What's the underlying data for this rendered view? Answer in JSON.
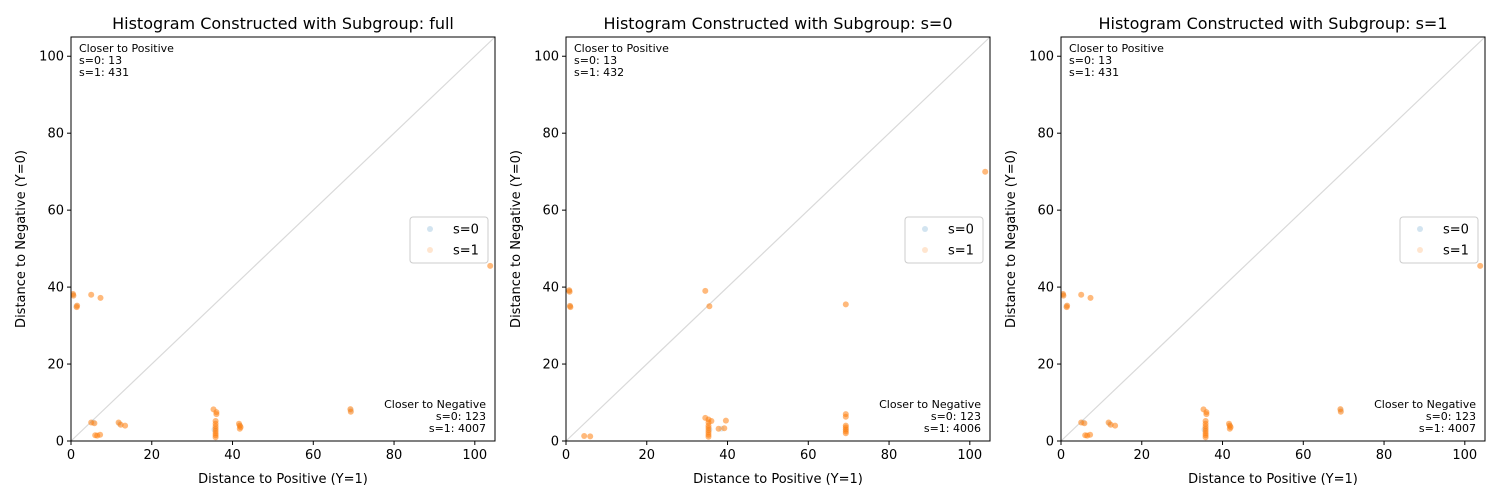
{
  "colors": {
    "s0": "#1f77b4",
    "s1": "#ff7f0e",
    "diagonal": "#d9d9d9"
  },
  "chart_data": [
    {
      "type": "scatter",
      "title": "Histogram Constructed with Subgroup: full",
      "xlabel": "Distance to Positive (Y=1)",
      "ylabel": "Distance to Negative (Y=0)",
      "xlim": [
        0,
        105
      ],
      "ylim": [
        0,
        105
      ],
      "xticks": [
        "0",
        "20",
        "40",
        "60",
        "80",
        "100"
      ],
      "yticks": [
        "0",
        "20",
        "40",
        "60",
        "80",
        "100"
      ],
      "legend": {
        "placement": "center-right",
        "entries": [
          "s=0",
          "s=1"
        ]
      },
      "annotations": {
        "positive": [
          "Closer to Positive",
          "s=0: 13",
          "s=1: 431"
        ],
        "negative": [
          "Closer to Negative",
          "s=0: 123",
          "s=1: 4007"
        ]
      },
      "series": [
        {
          "name": "s=0",
          "points": [
            [
              35.5,
              3
            ],
            [
              41.8,
              4
            ],
            [
              0.5,
              38
            ],
            [
              1.3,
              35
            ],
            [
              5.5,
              4.8
            ],
            [
              12,
              4.5
            ],
            [
              69.3,
              8
            ]
          ]
        },
        {
          "name": "s=1",
          "points": [
            [
              0.5,
              38.2
            ],
            [
              0.6,
              37.8
            ],
            [
              1.4,
              34.8
            ],
            [
              1.5,
              35.2
            ],
            [
              5,
              4.8
            ],
            [
              5.8,
              4.6
            ],
            [
              6.0,
              1.5
            ],
            [
              6.5,
              1.4
            ],
            [
              7.2,
              1.6
            ],
            [
              5,
              38
            ],
            [
              7.3,
              37.2
            ],
            [
              11.8,
              4.8
            ],
            [
              12.3,
              4.2
            ],
            [
              13.4,
              4.0
            ],
            [
              35.3,
              8.2
            ],
            [
              36,
              7.5
            ],
            [
              35.8,
              5.2
            ],
            [
              35.8,
              4.5
            ],
            [
              35.8,
              3.8
            ],
            [
              35.8,
              3.2
            ],
            [
              35.8,
              2.6
            ],
            [
              35.8,
              2.0
            ],
            [
              35.8,
              1.5
            ],
            [
              35.8,
              1.0
            ],
            [
              36,
              7.0
            ],
            [
              41.6,
              4.5
            ],
            [
              41.8,
              4.0
            ],
            [
              42,
              3.6
            ],
            [
              41.8,
              3.2
            ],
            [
              69.2,
              8.3
            ],
            [
              69.3,
              7.6
            ],
            [
              103.8,
              45.5
            ]
          ]
        }
      ]
    },
    {
      "type": "scatter",
      "title": "Histogram Constructed with Subgroup: s=0",
      "xlabel": "Distance to Positive (Y=1)",
      "ylabel": "Distance to Negative (Y=0)",
      "xlim": [
        0,
        105
      ],
      "ylim": [
        0,
        105
      ],
      "xticks": [
        "0",
        "20",
        "40",
        "60",
        "80",
        "100"
      ],
      "yticks": [
        "0",
        "20",
        "40",
        "60",
        "80",
        "100"
      ],
      "legend": {
        "placement": "center-right",
        "entries": [
          "s=0",
          "s=1"
        ]
      },
      "annotations": {
        "positive": [
          "Closer to Positive",
          "s=0: 13",
          "s=1: 432"
        ],
        "negative": [
          "Closer to Negative",
          "s=0: 123",
          "s=1: 4006"
        ]
      },
      "series": [
        {
          "name": "s=0",
          "points": [
            [
              35.5,
              3
            ],
            [
              69.3,
              3
            ],
            [
              0.8,
              39
            ],
            [
              1,
              35
            ],
            [
              38.5,
              3.2
            ]
          ]
        },
        {
          "name": "s=1",
          "points": [
            [
              0.8,
              39.2
            ],
            [
              0.9,
              38.8
            ],
            [
              1.0,
              35.1
            ],
            [
              1.1,
              34.8
            ],
            [
              4.5,
              1.3
            ],
            [
              6.0,
              1.2
            ],
            [
              34.5,
              39
            ],
            [
              35.5,
              35
            ],
            [
              34.5,
              6
            ],
            [
              35.3,
              5.6
            ],
            [
              35.3,
              4.8
            ],
            [
              35.3,
              4.0
            ],
            [
              35.3,
              3.4
            ],
            [
              35.3,
              2.8
            ],
            [
              35.3,
              2.2
            ],
            [
              35.3,
              1.6
            ],
            [
              35.3,
              1.1
            ],
            [
              36,
              5.2
            ],
            [
              37.8,
              3.2
            ],
            [
              39.2,
              3.3
            ],
            [
              39.6,
              5.3
            ],
            [
              69.3,
              7.0
            ],
            [
              69.3,
              6.3
            ],
            [
              69.3,
              4.0
            ],
            [
              69.3,
              3.5
            ],
            [
              69.3,
              3.0
            ],
            [
              69.3,
              2.5
            ],
            [
              69.3,
              2.0
            ],
            [
              69.3,
              35.5
            ],
            [
              103.8,
              70
            ]
          ]
        }
      ]
    },
    {
      "type": "scatter",
      "title": "Histogram Constructed with Subgroup: s=1",
      "xlabel": "Distance to Positive (Y=1)",
      "ylabel": "Distance to Negative (Y=0)",
      "xlim": [
        0,
        105
      ],
      "ylim": [
        0,
        105
      ],
      "xticks": [
        "0",
        "20",
        "40",
        "60",
        "80",
        "100"
      ],
      "yticks": [
        "0",
        "20",
        "40",
        "60",
        "80",
        "100"
      ],
      "legend": {
        "placement": "center-right",
        "entries": [
          "s=0",
          "s=1"
        ]
      },
      "annotations": {
        "positive": [
          "Closer to Positive",
          "s=0: 13",
          "s=1: 431"
        ],
        "negative": [
          "Closer to Negative",
          "s=0: 123",
          "s=1: 4007"
        ]
      },
      "series": [
        {
          "name": "s=0",
          "points": [
            [
              35.5,
              3
            ],
            [
              41.8,
              4
            ],
            [
              0.5,
              38
            ],
            [
              1.3,
              35
            ],
            [
              5.5,
              4.8
            ],
            [
              12,
              4.5
            ],
            [
              69.3,
              8
            ]
          ]
        },
        {
          "name": "s=1",
          "points": [
            [
              0.5,
              38.2
            ],
            [
              0.6,
              37.8
            ],
            [
              1.4,
              34.8
            ],
            [
              1.5,
              35.2
            ],
            [
              5,
              4.8
            ],
            [
              5.8,
              4.6
            ],
            [
              6.0,
              1.5
            ],
            [
              6.5,
              1.4
            ],
            [
              7.2,
              1.6
            ],
            [
              5,
              38
            ],
            [
              7.3,
              37.2
            ],
            [
              11.8,
              4.8
            ],
            [
              12.3,
              4.2
            ],
            [
              13.4,
              4.0
            ],
            [
              35.3,
              8.2
            ],
            [
              36,
              7.5
            ],
            [
              35.8,
              5.2
            ],
            [
              35.8,
              4.5
            ],
            [
              35.8,
              3.8
            ],
            [
              35.8,
              3.2
            ],
            [
              35.8,
              2.6
            ],
            [
              35.8,
              2.0
            ],
            [
              35.8,
              1.5
            ],
            [
              35.8,
              1.0
            ],
            [
              36,
              7.0
            ],
            [
              41.6,
              4.5
            ],
            [
              41.8,
              4.0
            ],
            [
              42,
              3.6
            ],
            [
              41.8,
              3.2
            ],
            [
              69.2,
              8.3
            ],
            [
              69.3,
              7.6
            ],
            [
              103.8,
              45.5
            ]
          ]
        }
      ]
    }
  ]
}
